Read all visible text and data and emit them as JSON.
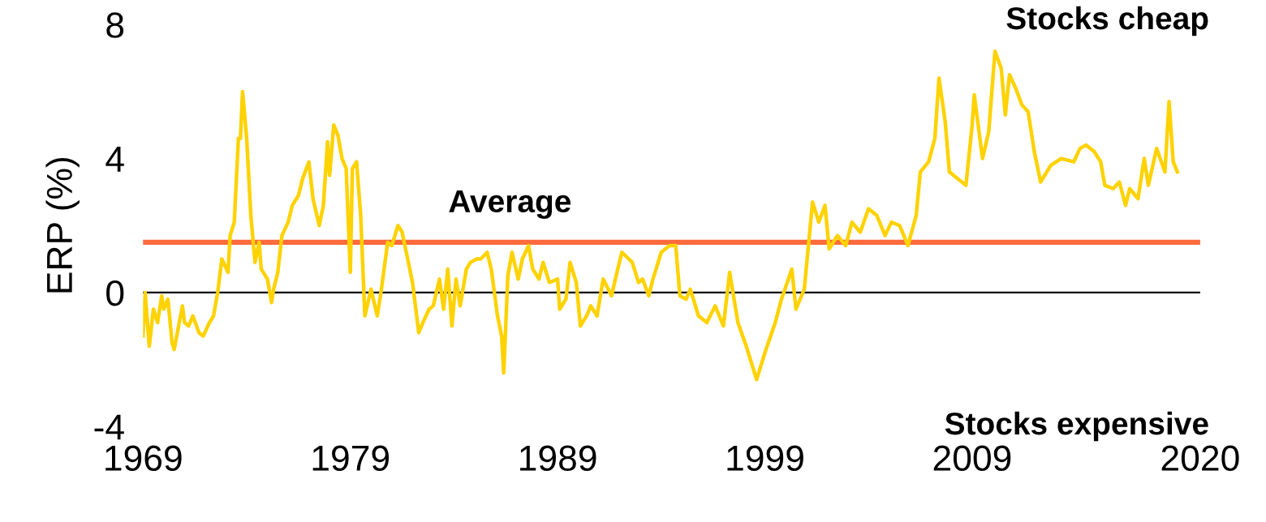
{
  "chart_data": {
    "type": "line",
    "ylabel": "ERP (%)",
    "x": [
      1969.0,
      1969.1,
      1969.3,
      1969.5,
      1969.7,
      1969.9,
      1970.0,
      1970.2,
      1970.4,
      1970.5,
      1970.9,
      1971.0,
      1971.2,
      1971.4,
      1971.7,
      1971.9,
      1972.2,
      1972.4,
      1972.6,
      1972.8,
      1973.1,
      1973.2,
      1973.4,
      1973.6,
      1973.7,
      1973.8,
      1974.0,
      1974.2,
      1974.4,
      1974.6,
      1974.7,
      1975.0,
      1975.2,
      1975.3,
      1975.5,
      1975.7,
      1976.0,
      1976.2,
      1976.5,
      1976.7,
      1977.0,
      1977.2,
      1977.5,
      1977.7,
      1977.9,
      1978.0,
      1978.2,
      1978.4,
      1978.6,
      1978.8,
      1979.0,
      1979.1,
      1979.3,
      1979.5,
      1979.7,
      1980.0,
      1980.3,
      1980.5,
      1980.8,
      1981.0,
      1981.3,
      1981.5,
      1981.8,
      1982.0,
      1982.3,
      1982.5,
      1982.8,
      1983.0,
      1983.3,
      1983.5,
      1983.7,
      1983.9,
      1984.1,
      1984.3,
      1984.6,
      1984.8,
      1985.1,
      1985.3,
      1985.6,
      1985.8,
      1986.1,
      1986.3,
      1986.4,
      1986.6,
      1986.8,
      1987.1,
      1987.3,
      1987.6,
      1987.8,
      1988.1,
      1988.3,
      1988.6,
      1989.0,
      1989.1,
      1989.4,
      1989.6,
      1989.9,
      1990.1,
      1990.4,
      1990.6,
      1990.9,
      1991.2,
      1991.6,
      1991.9,
      1992.1,
      1992.6,
      1992.9,
      1993.1,
      1993.4,
      1993.6,
      1994.0,
      1994.4,
      1994.7,
      1994.9,
      1995.2,
      1995.4,
      1995.8,
      1996.2,
      1996.6,
      1997.0,
      1997.3,
      1997.7,
      1998.1,
      1998.6,
      1999.0,
      1999.5,
      1999.8,
      2000.3,
      2000.5,
      2000.9,
      2001.1,
      2001.3,
      2001.6,
      2001.9,
      2002.1,
      2002.5,
      2002.9,
      2003.2,
      2003.6,
      2004.0,
      2004.4,
      2004.8,
      2005.1,
      2005.5,
      2005.9,
      2006.3,
      2006.5,
      2006.9,
      2007.2,
      2007.4,
      2007.7,
      2007.9,
      2008.3,
      2008.7,
      2009.0,
      2009.1,
      2009.5,
      2009.8,
      2010.1,
      2010.4,
      2010.6,
      2010.8,
      2011.1,
      2011.4,
      2011.7,
      2012.0,
      2012.3,
      2012.8,
      2013.3,
      2013.9,
      2014.2,
      2014.5,
      2014.9,
      2015.2,
      2015.4,
      2015.8,
      2016.1,
      2016.4,
      2016.6,
      2017.0,
      2017.3,
      2017.5,
      2017.9,
      2018.3,
      2018.5,
      2018.7,
      2018.9
    ],
    "series": [
      {
        "color": "#ffd200",
        "values": [
          -1.3,
          0.0,
          -1.6,
          -0.5,
          -0.9,
          -0.1,
          -0.5,
          -0.2,
          -1.5,
          -1.7,
          -0.4,
          -0.9,
          -1.0,
          -0.7,
          -1.2,
          -1.3,
          -0.9,
          -0.7,
          0.0,
          1.0,
          0.6,
          1.7,
          2.1,
          4.6,
          4.6,
          6.0,
          4.6,
          2.3,
          0.9,
          1.5,
          0.7,
          0.4,
          -0.3,
          0.1,
          0.6,
          1.7,
          2.1,
          2.6,
          2.9,
          3.4,
          3.9,
          2.8,
          2.0,
          2.6,
          4.5,
          3.5,
          5.0,
          4.7,
          4.0,
          3.7,
          0.6,
          3.7,
          3.9,
          2.3,
          -0.7,
          0.1,
          -0.7,
          0.1,
          1.5,
          1.4,
          2.0,
          1.8,
          0.9,
          0.3,
          -1.2,
          -0.9,
          -0.5,
          -0.4,
          0.4,
          -0.5,
          0.7,
          -1.0,
          0.4,
          -0.4,
          0.7,
          0.9,
          1.0,
          1.0,
          1.2,
          0.7,
          -0.7,
          -1.3,
          -2.4,
          0.5,
          1.2,
          0.4,
          1.0,
          1.4,
          0.7,
          0.4,
          0.9,
          0.3,
          0.4,
          -0.5,
          -0.2,
          0.9,
          0.3,
          -1.0,
          -0.7,
          -0.4,
          -0.7,
          0.4,
          -0.1,
          0.7,
          1.2,
          0.9,
          0.3,
          0.4,
          -0.1,
          0.4,
          1.2,
          1.4,
          1.4,
          -0.1,
          -0.2,
          0.1,
          -0.7,
          -0.9,
          -0.4,
          -1.0,
          0.6,
          -0.9,
          -1.6,
          -2.6,
          -1.8,
          -0.9,
          -0.2,
          0.7,
          -0.5,
          0.1,
          1.4,
          2.7,
          2.1,
          2.6,
          1.3,
          1.7,
          1.4,
          2.1,
          1.8,
          2.5,
          2.3,
          1.7,
          2.1,
          2.0,
          1.4,
          2.3,
          3.6,
          3.9,
          4.6,
          6.4,
          5.1,
          3.6,
          3.4,
          3.2,
          5.0,
          5.9,
          4.0,
          4.8,
          7.2,
          6.7,
          5.3,
          6.5,
          6.1,
          5.6,
          5.4,
          4.2,
          3.3,
          3.8,
          4.0,
          3.9,
          4.3,
          4.4,
          4.2,
          3.9,
          3.2,
          3.1,
          3.3,
          2.6,
          3.1,
          2.8,
          4.0,
          3.2,
          4.3,
          3.6,
          5.7,
          3.9,
          3.6
        ]
      }
    ],
    "xlim": [
      1969,
      2020
    ],
    "xticks": [
      1969,
      1979,
      1989,
      1999,
      2009,
      2020
    ],
    "ylim": [
      -4,
      8
    ],
    "yticks": [
      -4,
      0,
      4,
      8
    ],
    "ref_lines": [
      {
        "axis": "y",
        "value": 0,
        "color": "#000000"
      },
      {
        "axis": "y",
        "value": 1.5,
        "label": "Average",
        "color": "#ff6a3d"
      }
    ],
    "annotations": [
      "Stocks cheap",
      "Stocks expensive"
    ],
    "grid": false,
    "legend": false
  }
}
